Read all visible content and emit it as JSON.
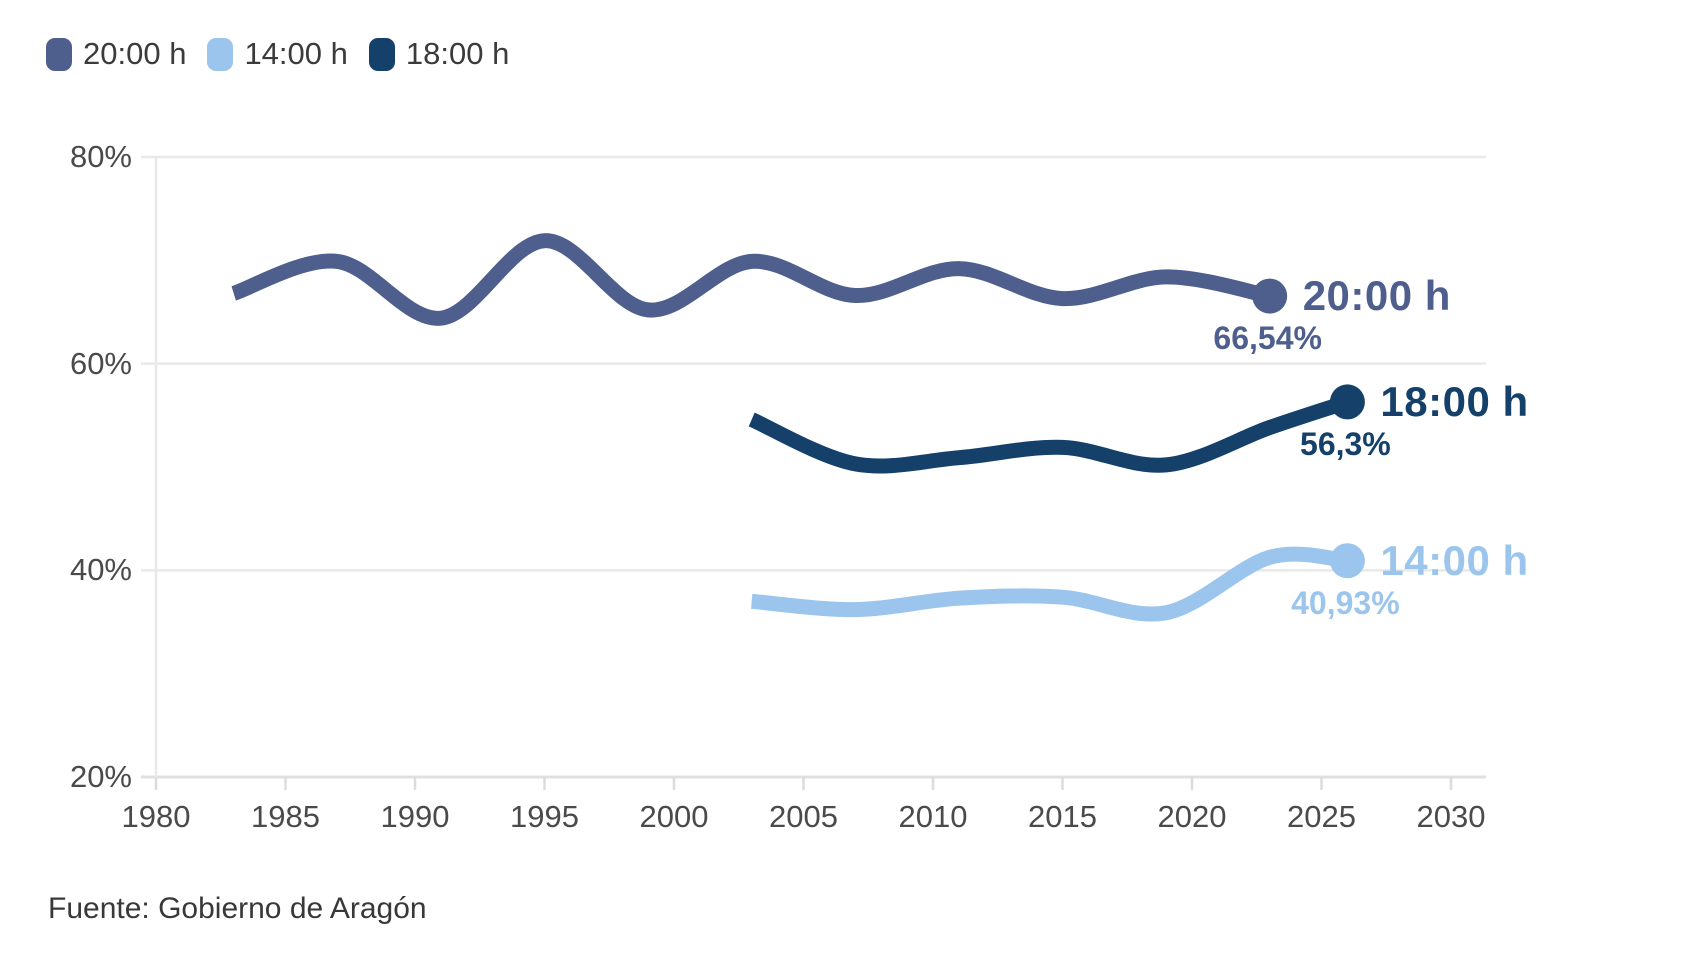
{
  "legend": {
    "items": [
      {
        "label": "20:00 h",
        "color": "#4e5f8e"
      },
      {
        "label": "14:00 h",
        "color": "#9bc5ec"
      },
      {
        "label": "18:00 h",
        "color": "#14406a"
      }
    ]
  },
  "chart_data": {
    "type": "line",
    "title": "",
    "xlabel": "",
    "ylabel": "",
    "xlim": [
      1980,
      2031.5
    ],
    "ylim": [
      20,
      80
    ],
    "grid": "horizontal",
    "legend_position": "top-left",
    "x_axis": {
      "ticks": [
        1980,
        1985,
        1990,
        1995,
        2000,
        2005,
        2010,
        2015,
        2020,
        2025,
        2030
      ]
    },
    "y_axis": {
      "ticks": [
        80,
        60,
        40,
        20
      ],
      "tick_labels": [
        "80%",
        "60%",
        "40%",
        "20%"
      ],
      "unit": "%"
    },
    "series": [
      {
        "name": "20:00 h",
        "color": "#4e5f8e",
        "end_value_label": "66,54%",
        "points": [
          [
            1983,
            66.8
          ],
          [
            1987,
            69.9
          ],
          [
            1991,
            64.4
          ],
          [
            1995,
            71.9
          ],
          [
            1999,
            65.2
          ],
          [
            2003,
            69.9
          ],
          [
            2007,
            66.6
          ],
          [
            2011,
            69.2
          ],
          [
            2015,
            66.3
          ],
          [
            2019,
            68.4
          ],
          [
            2023,
            66.54
          ]
        ]
      },
      {
        "name": "18:00 h",
        "color": "#14406a",
        "end_value_label": "56,3%",
        "points": [
          [
            2003,
            54.6
          ],
          [
            2007,
            50.3
          ],
          [
            2011,
            50.9
          ],
          [
            2015,
            51.9
          ],
          [
            2019,
            50.2
          ],
          [
            2023,
            53.82
          ],
          [
            2026,
            56.3
          ]
        ]
      },
      {
        "name": "14:00 h",
        "color": "#9bc5ec",
        "end_value_label": "40,93%",
        "points": [
          [
            2003,
            37.0
          ],
          [
            2007,
            36.2
          ],
          [
            2011,
            37.3
          ],
          [
            2015,
            37.4
          ],
          [
            2019,
            35.9
          ],
          [
            2023,
            41.26
          ],
          [
            2026,
            40.93
          ]
        ]
      }
    ]
  },
  "source": {
    "text": "Fuente: Gobierno de Aragón"
  }
}
